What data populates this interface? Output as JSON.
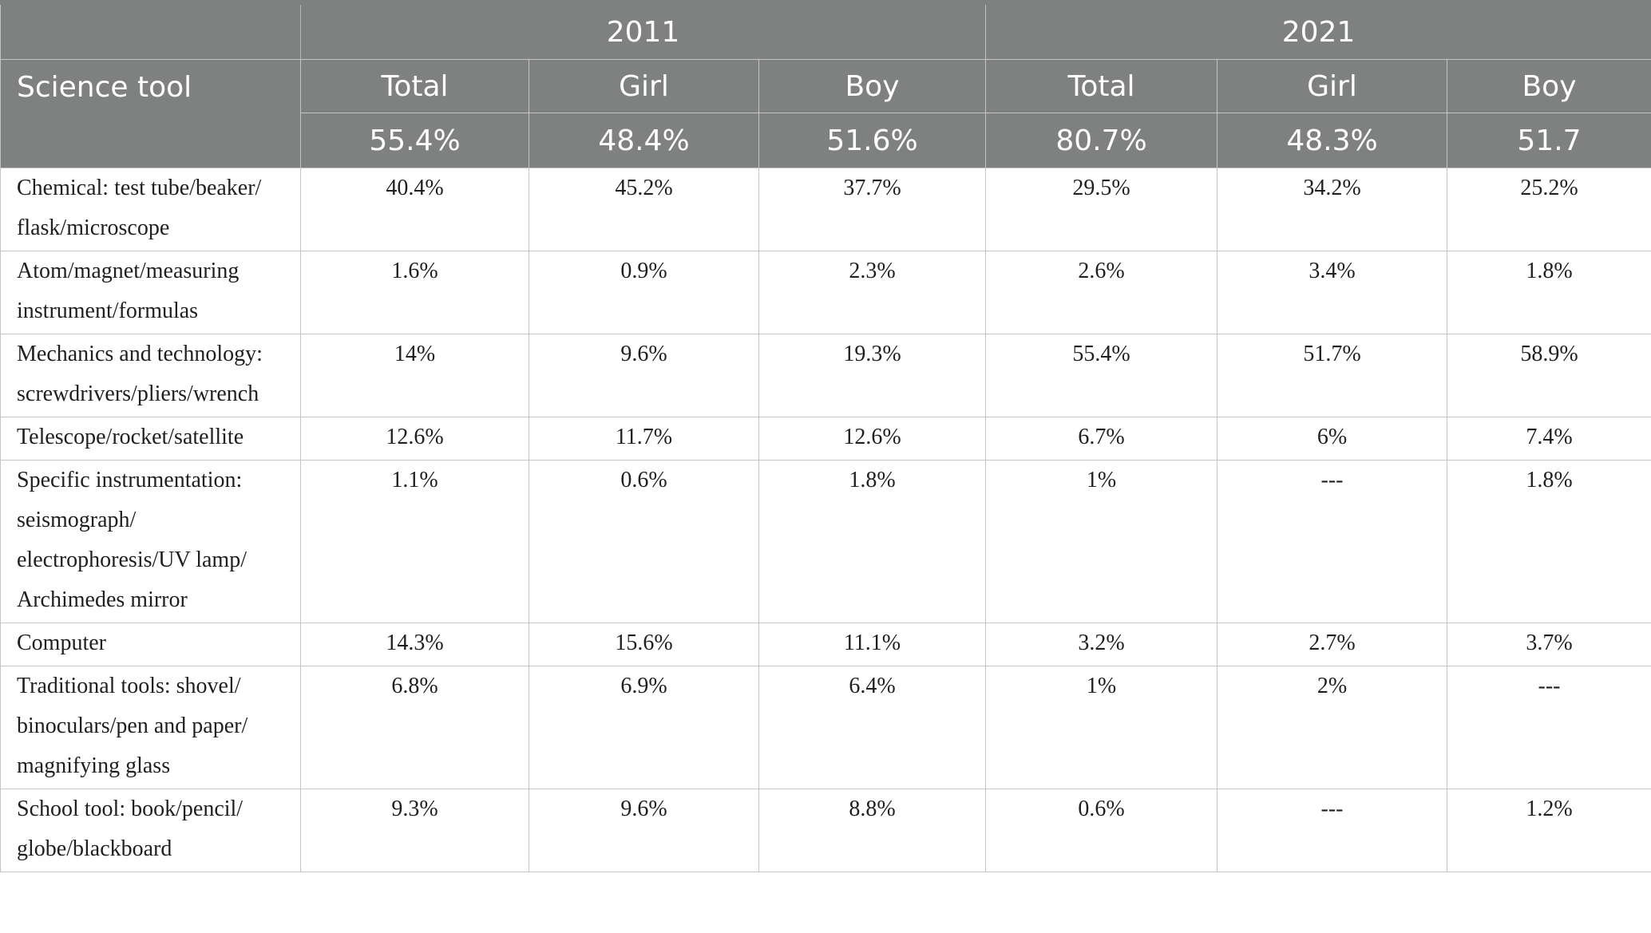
{
  "table": {
    "year_headers": [
      "2011",
      "2021"
    ],
    "tool_header": "Science tool",
    "sub_headers": [
      "Total",
      "Girl",
      "Boy",
      "Total",
      "Girl",
      "Boy"
    ],
    "share_row": [
      "55.4%",
      "48.4%",
      "51.6%",
      "80.7%",
      "48.3%",
      "51.7"
    ],
    "rows": [
      {
        "tool": [
          "Chemical: test tube/beaker/",
          "flask/microscope"
        ],
        "values": [
          "40.4%",
          "45.2%",
          "37.7%",
          "29.5%",
          "34.2%",
          "25.2%"
        ]
      },
      {
        "tool": [
          "Atom/magnet/measuring",
          "instrument/formulas"
        ],
        "values": [
          "1.6%",
          "0.9%",
          "2.3%",
          "2.6%",
          "3.4%",
          "1.8%"
        ]
      },
      {
        "tool": [
          "Mechanics and technology:",
          "screwdrivers/pliers/wrench"
        ],
        "values": [
          "14%",
          "9.6%",
          "19.3%",
          "55.4%",
          "51.7%",
          "58.9%"
        ]
      },
      {
        "tool": [
          "Telescope/rocket/satellite"
        ],
        "values": [
          "12.6%",
          "11.7%",
          "12.6%",
          "6.7%",
          "6%",
          "7.4%"
        ]
      },
      {
        "tool": [
          "Specific instrumentation:",
          "seismograph/",
          "electrophoresis/UV lamp/",
          "Archimedes mirror"
        ],
        "values": [
          "1.1%",
          "0.6%",
          "1.8%",
          "1%",
          "---",
          "1.8%"
        ]
      },
      {
        "tool": [
          "Computer"
        ],
        "values": [
          "14.3%",
          "15.6%",
          "11.1%",
          "3.2%",
          "2.7%",
          "3.7%"
        ]
      },
      {
        "tool": [
          "Traditional tools: shovel/",
          "binoculars/pen and paper/",
          "magnifying glass"
        ],
        "values": [
          "6.8%",
          "6.9%",
          "6.4%",
          "1%",
          "2%",
          "---"
        ]
      },
      {
        "tool": [
          "School tool: book/pencil/",
          "globe/blackboard"
        ],
        "values": [
          "9.3%",
          "9.6%",
          "8.8%",
          "0.6%",
          "---",
          "1.2%"
        ]
      }
    ]
  },
  "colors": {
    "header_bg": "#7e817f",
    "header_text": "#ffffff",
    "grid": "#c4c4c4",
    "body_text": "#1f1f1f"
  }
}
